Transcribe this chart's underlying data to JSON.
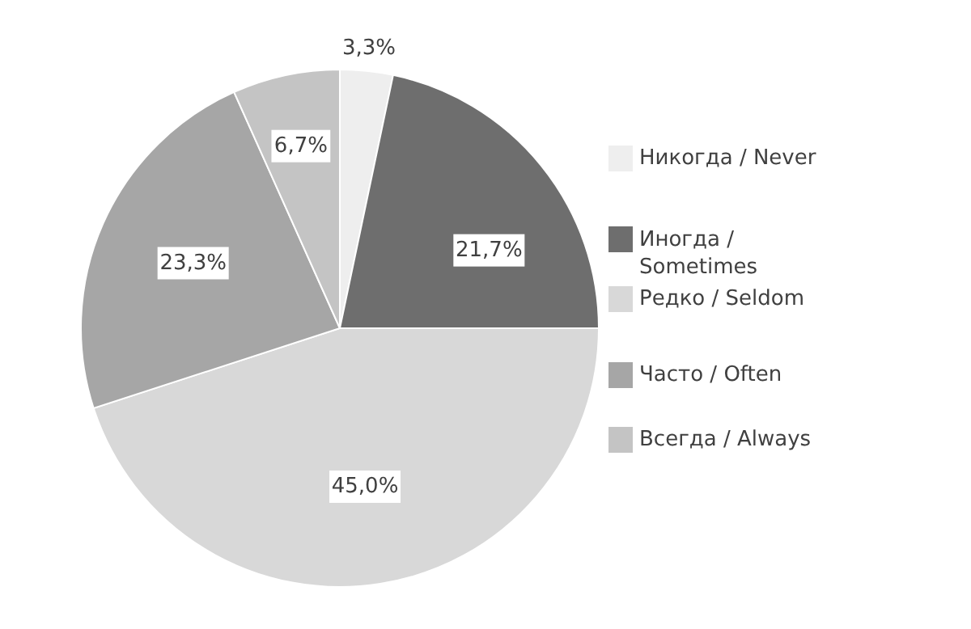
{
  "chart_data": {
    "type": "pie",
    "categories": [
      "Никогда / Never",
      "Иногда / Sometimes",
      "Редко / Seldom",
      "Часто / Often",
      "Всегда / Always"
    ],
    "values": [
      3.3,
      21.7,
      45.0,
      23.3,
      6.7
    ],
    "value_labels": [
      "3,3%",
      "21,7%",
      "45,0%",
      "23,3%",
      "6,7%"
    ],
    "colors": [
      "#eeeeee",
      "#6e6e6e",
      "#d8d8d8",
      "#a6a6a6",
      "#c4c4c4"
    ],
    "legend": "right"
  }
}
